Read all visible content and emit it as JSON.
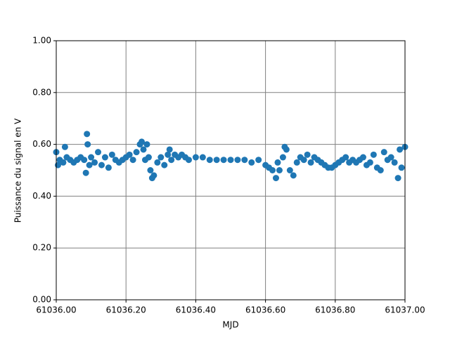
{
  "chart_data": {
    "type": "scatter",
    "xlabel": "MJD",
    "ylabel": "Puissance du signal en V",
    "color": "#1f77b4",
    "grid": true,
    "xlim": [
      61036.0,
      61037.0
    ],
    "xticks": [
      {
        "value": 61036.0,
        "label": "61036.00"
      },
      {
        "value": 61036.2,
        "label": "61036.20"
      },
      {
        "value": 61036.4,
        "label": "61036.40"
      },
      {
        "value": 61036.6,
        "label": "61036.60"
      },
      {
        "value": 61036.8,
        "label": "61036.80"
      },
      {
        "value": 61037.0,
        "label": "61037.00"
      }
    ],
    "ylim": [
      0,
      1
    ],
    "yticks": [
      {
        "value": 0,
        "label": "0.00"
      },
      {
        "value": 0.2,
        "label": "0.20"
      },
      {
        "value": 0.4,
        "label": "0.40"
      },
      {
        "value": 0.6,
        "label": "0.60"
      },
      {
        "value": 0.8,
        "label": "0.80"
      },
      {
        "value": 1,
        "label": "1.00"
      }
    ],
    "x": [
      61036.0,
      61036.005,
      61036.01,
      61036.02,
      61036.025,
      61036.03,
      61036.04,
      61036.05,
      61036.06,
      61036.07,
      61036.08,
      61036.085,
      61036.088,
      61036.09,
      61036.095,
      61036.1,
      61036.11,
      61036.12,
      61036.13,
      61036.14,
      61036.15,
      61036.16,
      61036.17,
      61036.18,
      61036.19,
      61036.2,
      61036.21,
      61036.22,
      61036.23,
      61036.24,
      61036.245,
      61036.25,
      61036.255,
      61036.26,
      61036.265,
      61036.27,
      61036.275,
      61036.28,
      61036.29,
      61036.3,
      61036.31,
      61036.32,
      61036.325,
      61036.33,
      61036.34,
      61036.35,
      61036.36,
      61036.37,
      61036.38,
      61036.4,
      61036.42,
      61036.44,
      61036.46,
      61036.48,
      61036.5,
      61036.52,
      61036.54,
      61036.56,
      61036.58,
      61036.6,
      61036.61,
      61036.62,
      61036.63,
      61036.635,
      61036.64,
      61036.65,
      61036.655,
      61036.66,
      61036.67,
      61036.68,
      61036.69,
      61036.7,
      61036.71,
      61036.72,
      61036.73,
      61036.74,
      61036.75,
      61036.76,
      61036.77,
      61036.78,
      61036.79,
      61036.8,
      61036.81,
      61036.82,
      61036.83,
      61036.84,
      61036.85,
      61036.86,
      61036.87,
      61036.88,
      61036.89,
      61036.9,
      61036.91,
      61036.92,
      61036.93,
      61036.94,
      61036.95,
      61036.96,
      61036.97,
      61036.98,
      61036.985,
      61036.99,
      61037.0
    ],
    "values": [
      0.57,
      0.52,
      0.54,
      0.53,
      0.59,
      0.55,
      0.54,
      0.53,
      0.54,
      0.55,
      0.54,
      0.49,
      0.64,
      0.6,
      0.52,
      0.55,
      0.53,
      0.57,
      0.52,
      0.55,
      0.51,
      0.56,
      0.54,
      0.53,
      0.54,
      0.55,
      0.56,
      0.54,
      0.57,
      0.6,
      0.61,
      0.58,
      0.54,
      0.6,
      0.55,
      0.5,
      0.47,
      0.48,
      0.53,
      0.55,
      0.52,
      0.56,
      0.58,
      0.54,
      0.56,
      0.55,
      0.56,
      0.55,
      0.54,
      0.55,
      0.55,
      0.54,
      0.54,
      0.54,
      0.54,
      0.54,
      0.54,
      0.53,
      0.54,
      0.52,
      0.51,
      0.5,
      0.47,
      0.53,
      0.5,
      0.55,
      0.59,
      0.58,
      0.5,
      0.48,
      0.53,
      0.55,
      0.54,
      0.56,
      0.53,
      0.55,
      0.54,
      0.53,
      0.52,
      0.51,
      0.51,
      0.52,
      0.53,
      0.54,
      0.55,
      0.53,
      0.54,
      0.53,
      0.54,
      0.55,
      0.52,
      0.53,
      0.56,
      0.51,
      0.5,
      0.57,
      0.54,
      0.55,
      0.53,
      0.47,
      0.58,
      0.51,
      0.59
    ]
  }
}
